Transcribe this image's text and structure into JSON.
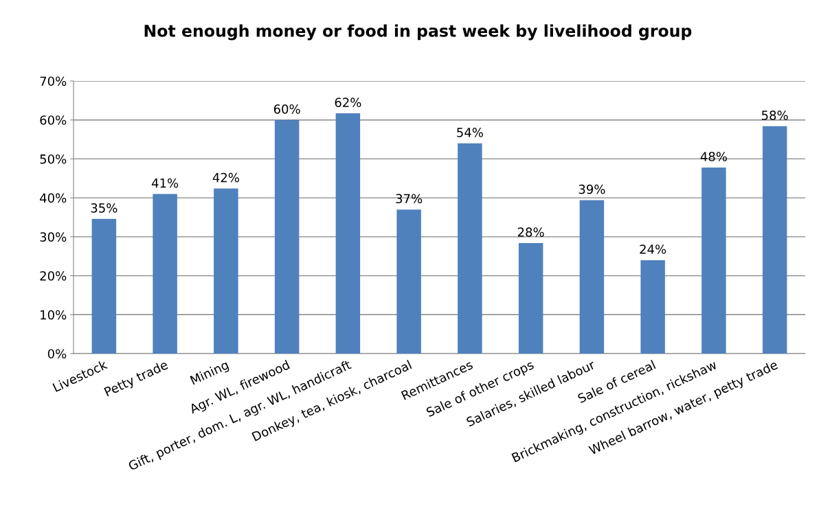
{
  "chart_data": {
    "type": "bar",
    "title": "Not enough money or food in past week by livelihood group",
    "categories": [
      "Livestock",
      "Petty trade",
      "Mining",
      "Agr. WL, firewood",
      "Gift, porter, dom. L, agr. WL, handicraft",
      "Donkey, tea, kiosk, charcoal",
      "Remittances",
      "Sale of other crops",
      "Salaries, skilled labour",
      "Sale of cereal",
      "Brickmaking, construction, rickshaw",
      "Wheel barrow, water, petty trade"
    ],
    "values": [
      34.6,
      41.0,
      42.4,
      60.0,
      61.7,
      37.0,
      54.0,
      28.4,
      39.4,
      24.0,
      47.8,
      58.4
    ],
    "value_labels": [
      "35%",
      "41%",
      "42%",
      "60%",
      "62%",
      "37%",
      "54%",
      "28%",
      "39%",
      "24%",
      "48%",
      "58%"
    ],
    "color": "#4f81bd",
    "ylim": [
      0,
      70
    ],
    "yticks": [
      {
        "value": 0,
        "label": "0%"
      },
      {
        "value": 10,
        "label": "10%"
      },
      {
        "value": 20,
        "label": "20%"
      },
      {
        "value": 30,
        "label": "30%"
      },
      {
        "value": 40,
        "label": "40%"
      },
      {
        "value": 50,
        "label": "50%"
      },
      {
        "value": 60,
        "label": "60%"
      },
      {
        "value": 70,
        "label": "70%"
      }
    ],
    "grid": "y"
  }
}
